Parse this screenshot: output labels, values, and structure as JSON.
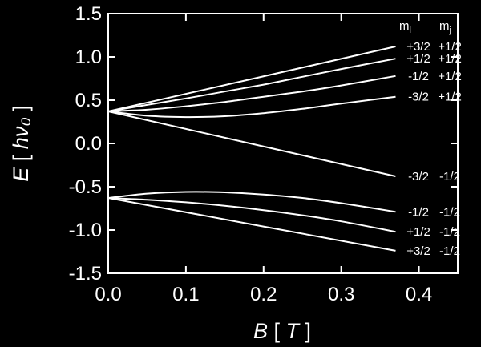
{
  "chart_data": {
    "type": "line",
    "xlabel": {
      "var": "B",
      "unit": "T"
    },
    "ylabel": {
      "var": "E",
      "unit": "hν₀"
    },
    "xlim": [
      0.0,
      0.45
    ],
    "ylim": [
      -1.5,
      1.5
    ],
    "xticks": [
      "0.0",
      "0.1",
      "0.2",
      "0.3",
      "0.4"
    ],
    "yticks": [
      "1.5",
      "1.0",
      "0.5",
      "0.0",
      "-0.5",
      "-1.0",
      "-1.5"
    ],
    "grid": false,
    "column_headers": {
      "ml": "m",
      "ml_sub": "l",
      "mj": "m",
      "mj_sub": "j"
    },
    "series": [
      {
        "ml": "+3/2",
        "mj": "+1/2",
        "x": [
          0,
          0.37
        ],
        "y": [
          0.37,
          1.12
        ]
      },
      {
        "ml": "+1/2",
        "mj": "+1/2",
        "x": [
          0,
          0.05,
          0.1,
          0.15,
          0.2,
          0.25,
          0.3,
          0.37
        ],
        "y": [
          0.37,
          0.445,
          0.52,
          0.6,
          0.68,
          0.77,
          0.86,
          0.98
        ]
      },
      {
        "ml": "-1/2",
        "mj": "+1/2",
        "x": [
          0,
          0.05,
          0.1,
          0.15,
          0.2,
          0.25,
          0.3,
          0.37
        ],
        "y": [
          0.37,
          0.39,
          0.43,
          0.48,
          0.54,
          0.6,
          0.67,
          0.78
        ]
      },
      {
        "ml": "-3/2",
        "mj": "+1/2",
        "x": [
          0,
          0.05,
          0.1,
          0.15,
          0.2,
          0.25,
          0.3,
          0.37
        ],
        "y": [
          0.37,
          0.32,
          0.305,
          0.315,
          0.35,
          0.4,
          0.46,
          0.54
        ]
      },
      {
        "ml": "-3/2",
        "mj": "-1/2",
        "x": [
          0,
          0.37
        ],
        "y": [
          0.37,
          -0.38
        ]
      },
      {
        "ml": "-1/2",
        "mj": "-1/2",
        "x": [
          0,
          0.05,
          0.1,
          0.15,
          0.2,
          0.25,
          0.3,
          0.37
        ],
        "y": [
          -0.63,
          -0.58,
          -0.56,
          -0.565,
          -0.59,
          -0.63,
          -0.69,
          -0.79
        ]
      },
      {
        "ml": "+1/2",
        "mj": "-1/2",
        "x": [
          0,
          0.05,
          0.1,
          0.15,
          0.2,
          0.25,
          0.3,
          0.37
        ],
        "y": [
          -0.63,
          -0.65,
          -0.68,
          -0.72,
          -0.77,
          -0.83,
          -0.9,
          -1.02
        ]
      },
      {
        "ml": "+3/2",
        "mj": "-1/2",
        "x": [
          0,
          0.37
        ],
        "y": [
          -0.63,
          -1.24
        ]
      }
    ]
  }
}
